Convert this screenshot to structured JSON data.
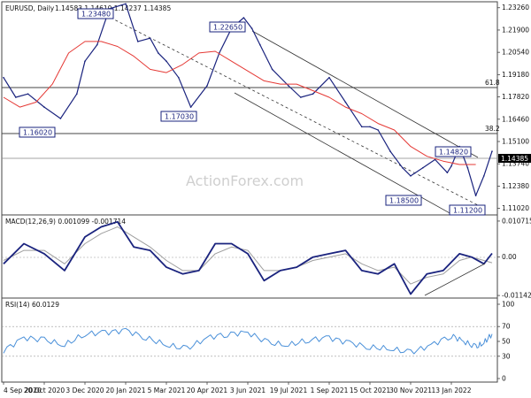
{
  "header": {
    "symbol": "EURUSD, Daily",
    "ohlc": "1.14583 1.14610 1.14237 1.14385"
  },
  "watermark": "ActionForex.com",
  "price_axis": {
    "ticks": [
      "1.23260",
      "1.21900",
      "1.20540",
      "1.19180",
      "1.17820",
      "1.16460",
      "1.15100",
      "1.13740",
      "1.12380",
      "1.11020"
    ],
    "current": "1.14385"
  },
  "macd_axis": {
    "ticks": [
      "0.010715",
      "0.00",
      "-0.011424"
    ]
  },
  "rsi_axis": {
    "ticks": [
      "100",
      "70",
      "50",
      "30",
      "0"
    ]
  },
  "x_axis": {
    "labels": [
      "4 Sep 2020",
      "20 Oct 2020",
      "3 Dec 2020",
      "20 Jan 2021",
      "5 Mar 2021",
      "20 Apr 2021",
      "3 Jun 2021",
      "19 Jul 2021",
      "1 Sep 2021",
      "15 Oct 2021",
      "30 Nov 2021",
      "13 Jan 2022"
    ]
  },
  "price_annotations": [
    "1.16020",
    "1.23480",
    "1.17030",
    "1.22650",
    "1.18500",
    "1.11200",
    "1.14820"
  ],
  "fib_levels": [
    "61.8",
    "38.2"
  ],
  "macd": {
    "title": "MACD(12,26,9) 0.001099 -0.001714"
  },
  "rsi": {
    "title": "RSI(14) 60.0129"
  },
  "colors": {
    "price_line": "#1a237e",
    "ma_line": "#e53935",
    "macd_line": "#1a237e",
    "signal_line": "#9e9e9e",
    "rsi_line": "#4a90d9",
    "level_line": "#444444",
    "channel_line": "#333333"
  },
  "chart_data": {
    "type": "line",
    "panels": [
      "price",
      "macd",
      "rsi"
    ],
    "x_dates": [
      "4 Sep 2020",
      "20 Oct 2020",
      "3 Dec 2020",
      "20 Jan 2021",
      "5 Mar 2021",
      "20 Apr 2021",
      "3 Jun 2021",
      "19 Jul 2021",
      "1 Sep 2021",
      "15 Oct 2021",
      "30 Nov 2021",
      "13 Jan 2022"
    ],
    "price": {
      "x": [
        0,
        0.3,
        0.6,
        1,
        1.4,
        1.8,
        2.0,
        2.3,
        2.6,
        3.0,
        3.3,
        3.6,
        3.8,
        4.0,
        4.3,
        4.6,
        5.0,
        5.3,
        5.6,
        5.9,
        6.1,
        6.3,
        6.6,
        7.0,
        7.3,
        7.6,
        8.0,
        8.4,
        8.8,
        9.0,
        9.2,
        9.5,
        9.8,
        10.0,
        10.3,
        10.6,
        10.9,
        11.0,
        11.2,
        11.4,
        11.6,
        11.8,
        12.0
      ],
      "values": [
        1.19,
        1.178,
        1.18,
        1.172,
        1.165,
        1.18,
        1.2,
        1.21,
        1.232,
        1.235,
        1.212,
        1.214,
        1.205,
        1.2,
        1.19,
        1.172,
        1.185,
        1.205,
        1.22,
        1.2265,
        1.22,
        1.21,
        1.195,
        1.185,
        1.178,
        1.18,
        1.19,
        1.175,
        1.16,
        1.16,
        1.158,
        1.145,
        1.135,
        1.13,
        1.135,
        1.14,
        1.132,
        1.136,
        1.148,
        1.135,
        1.118,
        1.13,
        1.145
      ],
      "ma_values": [
        1.178,
        1.172,
        1.175,
        1.186,
        1.205,
        1.212,
        1.212,
        1.209,
        1.203,
        1.195,
        1.193,
        1.198,
        1.205,
        1.206,
        1.2,
        1.194,
        1.188,
        1.186,
        1.186,
        1.182,
        1.178,
        1.172,
        1.168,
        1.162,
        1.158,
        1.148,
        1.142,
        1.139,
        1.137,
        1.137
      ],
      "ma_x": [
        0,
        0.4,
        0.8,
        1.2,
        1.6,
        2.0,
        2.4,
        2.8,
        3.2,
        3.6,
        4.0,
        4.4,
        4.8,
        5.2,
        5.6,
        6.0,
        6.4,
        6.8,
        7.2,
        7.6,
        8.0,
        8.4,
        8.8,
        9.2,
        9.6,
        10.0,
        10.4,
        10.8,
        11.2,
        11.6
      ],
      "ylim": [
        1.11,
        1.233
      ]
    },
    "macd": {
      "x": [
        0,
        0.5,
        1,
        1.5,
        2,
        2.4,
        2.8,
        3.2,
        3.6,
        4.0,
        4.4,
        4.8,
        5.2,
        5.6,
        6.0,
        6.4,
        6.8,
        7.2,
        7.6,
        8.0,
        8.4,
        8.8,
        9.2,
        9.6,
        10.0,
        10.4,
        10.8,
        11.2,
        11.5,
        11.8,
        12.0
      ],
      "values": [
        -0.002,
        0.004,
        0.001,
        -0.004,
        0.006,
        0.009,
        0.0105,
        0.003,
        0.002,
        -0.003,
        -0.005,
        -0.004,
        0.004,
        0.004,
        0.001,
        -0.007,
        -0.004,
        -0.003,
        0.0,
        0.001,
        0.002,
        -0.004,
        -0.005,
        -0.002,
        -0.011,
        -0.005,
        -0.004,
        0.001,
        0.0,
        -0.002,
        0.0011
      ],
      "signal": [
        -0.001,
        0.002,
        0.002,
        -0.002,
        0.004,
        0.007,
        0.009,
        0.006,
        0.003,
        -0.001,
        -0.004,
        -0.004,
        0.001,
        0.003,
        0.002,
        -0.004,
        -0.004,
        -0.003,
        -0.001,
        0.0,
        0.001,
        -0.002,
        -0.004,
        -0.003,
        -0.008,
        -0.006,
        -0.005,
        -0.001,
        0.0,
        -0.001,
        -0.0017
      ],
      "ylim": [
        -0.0114,
        0.0107
      ]
    },
    "rsi": {
      "x": [
        0,
        0.5,
        1,
        1.5,
        2,
        2.5,
        3,
        3.5,
        4,
        4.5,
        5,
        5.5,
        6,
        6.5,
        7,
        7.5,
        8,
        8.5,
        9,
        9.5,
        10,
        10.5,
        11,
        11.3,
        11.6,
        11.8,
        12.0
      ],
      "values": [
        38,
        55,
        52,
        45,
        60,
        62,
        65,
        55,
        45,
        40,
        55,
        60,
        62,
        48,
        45,
        52,
        55,
        48,
        42,
        40,
        35,
        45,
        58,
        50,
        42,
        48,
        60
      ],
      "ylim": [
        0,
        100
      ],
      "levels": [
        70,
        30
      ]
    }
  }
}
